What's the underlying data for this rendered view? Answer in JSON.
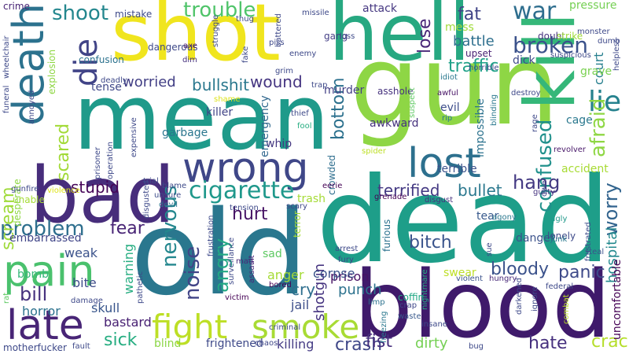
{
  "words": [
    {
      "text": "shot",
      "color": "#f0e51e"
    },
    {
      "text": "hell",
      "color": "#27a881"
    },
    {
      "text": "mean",
      "color": "#1f9a8a"
    },
    {
      "text": "gun",
      "color": "#8ed645"
    },
    {
      "text": "dead",
      "color": "#1e9e89"
    },
    {
      "text": "old",
      "color": "#2a778e"
    },
    {
      "text": "blood",
      "color": "#3f1a6b"
    },
    {
      "text": "bad",
      "color": "#472d7b"
    },
    {
      "text": "kill",
      "color": "#35b779"
    },
    {
      "text": "wrong",
      "color": "#3f4788"
    },
    {
      "text": "death",
      "color": "#2c728e"
    },
    {
      "text": "lost",
      "color": "#2d708e"
    },
    {
      "text": "pain",
      "color": "#4ac16d"
    },
    {
      "text": "late",
      "color": "#482576"
    },
    {
      "text": "fight",
      "color": "#bddf26"
    },
    {
      "text": "smoke",
      "color": "#a8db34"
    },
    {
      "text": "cigarette",
      "color": "#1f988b"
    },
    {
      "text": "die",
      "color": "#414487"
    },
    {
      "text": "shoot",
      "color": "#24878e"
    },
    {
      "text": "trouble",
      "color": "#50c46a"
    },
    {
      "text": "broken",
      "color": "#3b528b"
    },
    {
      "text": "war",
      "color": "#2e6e8e"
    },
    {
      "text": "lie",
      "color": "#26828e"
    },
    {
      "text": "confused",
      "color": "#21918c"
    },
    {
      "text": "afraid",
      "color": "#8fd744"
    },
    {
      "text": "worry",
      "color": "#32648e"
    },
    {
      "text": "problem",
      "color": "#2e6f8e"
    },
    {
      "text": "scream",
      "color": "#9fda3a"
    },
    {
      "text": "scared",
      "color": "#a2da37"
    },
    {
      "text": "nervous",
      "color": "#24878e"
    },
    {
      "text": "fear",
      "color": "#482475"
    },
    {
      "text": "hurt",
      "color": "#471365"
    },
    {
      "text": "angry",
      "color": "#22a884"
    },
    {
      "text": "noise",
      "color": "#414487"
    },
    {
      "text": "hang",
      "color": "#443a83"
    },
    {
      "text": "bill",
      "color": "#46327e"
    },
    {
      "text": "sick",
      "color": "#26ad81"
    },
    {
      "text": "hate",
      "color": "#46307e"
    },
    {
      "text": "crack",
      "color": "#b5de2b"
    },
    {
      "text": "bloody",
      "color": "#3b528b"
    },
    {
      "text": "panic",
      "color": "#3e4a89"
    },
    {
      "text": "bitch",
      "color": "#3a548c"
    },
    {
      "text": "bottom",
      "color": "#2d718e"
    },
    {
      "text": "stupid",
      "color": "#450457"
    },
    {
      "text": "terrified",
      "color": "#443983"
    },
    {
      "text": "bullet",
      "color": "#2a788e"
    },
    {
      "text": "crash",
      "color": "#3f4788"
    },
    {
      "text": "fist",
      "color": "#472f7d"
    },
    {
      "text": "wound",
      "color": "#453581"
    },
    {
      "text": "bullshit",
      "color": "#2a788e"
    },
    {
      "text": "worried",
      "color": "#423f85"
    },
    {
      "text": "lose",
      "color": "#482677"
    },
    {
      "text": "fat",
      "color": "#414487"
    },
    {
      "text": "battle",
      "color": "#2e6f8e"
    },
    {
      "text": "traffic",
      "color": "#1fa188"
    },
    {
      "text": "hospital",
      "color": "#23898e"
    },
    {
      "text": "court",
      "color": "#277f8e"
    },
    {
      "text": "uncomfortable",
      "color": "#440154"
    },
    {
      "text": "shotgun",
      "color": "#463480"
    },
    {
      "text": "cry",
      "color": "#2e6e8e"
    },
    {
      "text": "jail",
      "color": "#3d4e8a"
    },
    {
      "text": "punch",
      "color": "#2c728e"
    },
    {
      "text": "prison",
      "color": "#471164"
    },
    {
      "text": "dirty",
      "color": "#75d054"
    },
    {
      "text": "killing",
      "color": "#443b84"
    },
    {
      "text": "corpse",
      "color": "#3a538b"
    },
    {
      "text": "anger",
      "color": "#a5db36"
    },
    {
      "text": "frightened",
      "color": "#3e4989"
    },
    {
      "text": "blind",
      "color": "#8bd646"
    },
    {
      "text": "bastard",
      "color": "#482173"
    },
    {
      "text": "skull",
      "color": "#39568c"
    },
    {
      "text": "horror",
      "color": "#2c728e"
    },
    {
      "text": "weak",
      "color": "#3b528b"
    },
    {
      "text": "bite",
      "color": "#3e4c8a"
    },
    {
      "text": "warning",
      "color": "#26ad81"
    },
    {
      "text": "sad",
      "color": "#5ec962"
    },
    {
      "text": "embarrassed",
      "color": "#404588"
    },
    {
      "text": "bomb",
      "color": "#35b779"
    },
    {
      "text": "garbage",
      "color": "#2a768e"
    },
    {
      "text": "killer",
      "color": "#414487"
    },
    {
      "text": "tense",
      "color": "#3f4788"
    },
    {
      "text": "whip",
      "color": "#453781"
    },
    {
      "text": "emergency",
      "color": "#31688e"
    },
    {
      "text": "awkward",
      "color": "#46327e"
    },
    {
      "text": "evil",
      "color": "#3d4d8a"
    },
    {
      "text": "terrible",
      "color": "#3b528b"
    },
    {
      "text": "impossible",
      "color": "#2c728e"
    },
    {
      "text": "cage",
      "color": "#2a788e"
    },
    {
      "text": "grave",
      "color": "#7ad151"
    },
    {
      "text": "accident",
      "color": "#a8db34"
    },
    {
      "text": "danger",
      "color": "#3b528b"
    },
    {
      "text": "tear",
      "color": "#38598c"
    },
    {
      "text": "attack",
      "color": "#453781"
    },
    {
      "text": "gang",
      "color": "#433e85"
    },
    {
      "text": "mess",
      "color": "#a0da39"
    },
    {
      "text": "upset",
      "color": "#482173"
    },
    {
      "text": "dick",
      "color": "#3e4a89"
    },
    {
      "text": "murder",
      "color": "#423f85"
    },
    {
      "text": "asshole",
      "color": "#46327e"
    },
    {
      "text": "doubt",
      "color": "#46307e"
    },
    {
      "text": "strike",
      "color": "#a0da39"
    },
    {
      "text": "pressure",
      "color": "#75d054"
    },
    {
      "text": "crime",
      "color": "#482475"
    },
    {
      "text": "mistake",
      "color": "#3e4a89"
    },
    {
      "text": "confusion",
      "color": "#2c728e"
    },
    {
      "text": "explosion",
      "color": "#8fd744"
    },
    {
      "text": "dangerous",
      "color": "#3e4989"
    },
    {
      "text": "axe",
      "color": "#481769"
    },
    {
      "text": "dim",
      "color": "#46307e"
    },
    {
      "text": "trash",
      "color": "#a5db36"
    },
    {
      "text": "crowded",
      "color": "#2e6e8e"
    },
    {
      "text": "furious",
      "color": "#2c728e"
    },
    {
      "text": "swear",
      "color": "#bddf26"
    },
    {
      "text": "violent",
      "color": "#3b528b"
    },
    {
      "text": "hungry",
      "color": "#482878"
    },
    {
      "text": "fury",
      "color": "#3f4788"
    },
    {
      "text": "arrest",
      "color": "#3e4a89"
    },
    {
      "text": "coffin",
      "color": "#22a884"
    },
    {
      "text": "crap",
      "color": "#3f4788"
    },
    {
      "text": "waste",
      "color": "#38598c"
    },
    {
      "text": "frustrated",
      "color": "#3e4c8a"
    },
    {
      "text": "lonely",
      "color": "#3e4a89"
    },
    {
      "text": "ugly",
      "color": "#1f998a"
    },
    {
      "text": "junk",
      "color": "#2a788e"
    },
    {
      "text": "steal",
      "color": "#3b528b"
    },
    {
      "text": "agony",
      "color": "#2a788e"
    },
    {
      "text": "guilty",
      "color": "#463480"
    },
    {
      "text": "revolver",
      "color": "#481769"
    },
    {
      "text": "blinding",
      "color": "#2a788e"
    },
    {
      "text": "disgust",
      "color": "#46327e"
    },
    {
      "text": "grenade",
      "color": "#440154"
    },
    {
      "text": "spider",
      "color": "#bddf26"
    },
    {
      "text": "fool",
      "color": "#26ad81"
    },
    {
      "text": "thief",
      "color": "#3e4a89"
    },
    {
      "text": "rip",
      "color": "#2a788e"
    },
    {
      "text": "awful",
      "color": "#471365"
    },
    {
      "text": "idiot",
      "color": "#2a788e"
    },
    {
      "text": "insane",
      "color": "#3e4a89"
    },
    {
      "text": "nightmare",
      "color": "#25ac82"
    },
    {
      "text": "freezing",
      "color": "#2a788e"
    },
    {
      "text": "limp",
      "color": "#2c728e"
    },
    {
      "text": "surveillance",
      "color": "#3e4989"
    },
    {
      "text": "assault",
      "color": "#482878"
    },
    {
      "text": "mad",
      "color": "#482878"
    },
    {
      "text": "terror",
      "color": "#a5db36"
    },
    {
      "text": "victim",
      "color": "#440154"
    },
    {
      "text": "bored",
      "color": "#440154"
    },
    {
      "text": "criminal",
      "color": "#3e4a89"
    },
    {
      "text": "chaos",
      "color": "#3f4788"
    },
    {
      "text": "tension",
      "color": "#3e4989"
    },
    {
      "text": "scary",
      "color": "#3e4989"
    },
    {
      "text": "frustration",
      "color": "#3e4989"
    },
    {
      "text": "eerie",
      "color": "#440154"
    },
    {
      "text": "blame",
      "color": "#3e4a89"
    },
    {
      "text": "unsure",
      "color": "#3e4c8a"
    },
    {
      "text": "devil",
      "color": "#2c728e"
    },
    {
      "text": "disgusted",
      "color": "#3e4989"
    },
    {
      "text": "pathetic",
      "color": "#3e4989"
    },
    {
      "text": "damage",
      "color": "#3e4989"
    },
    {
      "text": "trial",
      "color": "#3e4989"
    },
    {
      "text": "expensive",
      "color": "#3e4989"
    },
    {
      "text": "prisoner",
      "color": "#3e4989"
    },
    {
      "text": "operation",
      "color": "#3e4989"
    },
    {
      "text": "unable",
      "color": "#a5db36"
    },
    {
      "text": "desperate",
      "color": "#8fd744"
    },
    {
      "text": "gunfire",
      "color": "#3e4989"
    },
    {
      "text": "violence",
      "color": "#dde318"
    },
    {
      "text": "rat",
      "color": "#5ec962"
    },
    {
      "text": "motherfucker",
      "color": "#3e4989"
    },
    {
      "text": "fault",
      "color": "#3e4989"
    },
    {
      "text": "bug",
      "color": "#3e4989"
    },
    {
      "text": "combat",
      "color": "#bddf26"
    },
    {
      "text": "darkened",
      "color": "#3e4989"
    },
    {
      "text": "ignore",
      "color": "#3e4989"
    },
    {
      "text": "federal",
      "color": "#3e4989"
    },
    {
      "text": "sue",
      "color": "#3e4989"
    },
    {
      "text": "owe",
      "color": "#3e4989"
    },
    {
      "text": "suspect",
      "color": "#5ec962"
    },
    {
      "text": "horrible",
      "color": "#3e4989"
    },
    {
      "text": "loss",
      "color": "#3e4989"
    },
    {
      "text": "enemy",
      "color": "#3e4989"
    },
    {
      "text": "piss",
      "color": "#3e4989"
    },
    {
      "text": "battered",
      "color": "#3e4989"
    },
    {
      "text": "missile",
      "color": "#3e4989"
    },
    {
      "text": "thug",
      "color": "#3e4989"
    },
    {
      "text": "struggle",
      "color": "#3e4989"
    },
    {
      "text": "fake",
      "color": "#3e4989"
    },
    {
      "text": "grim",
      "color": "#3e4989"
    },
    {
      "text": "trap",
      "color": "#3e4989"
    },
    {
      "text": "shame",
      "color": "#dde318"
    },
    {
      "text": "deadly",
      "color": "#3e4989"
    },
    {
      "text": "annoyed",
      "color": "#3e4989"
    },
    {
      "text": "funeral",
      "color": "#3e4989"
    },
    {
      "text": "wheelchair",
      "color": "#3e4989"
    },
    {
      "text": "destroy",
      "color": "#3e4989"
    },
    {
      "text": "monster",
      "color": "#3e4989"
    },
    {
      "text": "suspicious",
      "color": "#3e4989"
    },
    {
      "text": "dumb",
      "color": "#3e4989"
    },
    {
      "text": "helpless",
      "color": "#3e4989"
    },
    {
      "text": "rage",
      "color": "#3e4989"
    }
  ]
}
